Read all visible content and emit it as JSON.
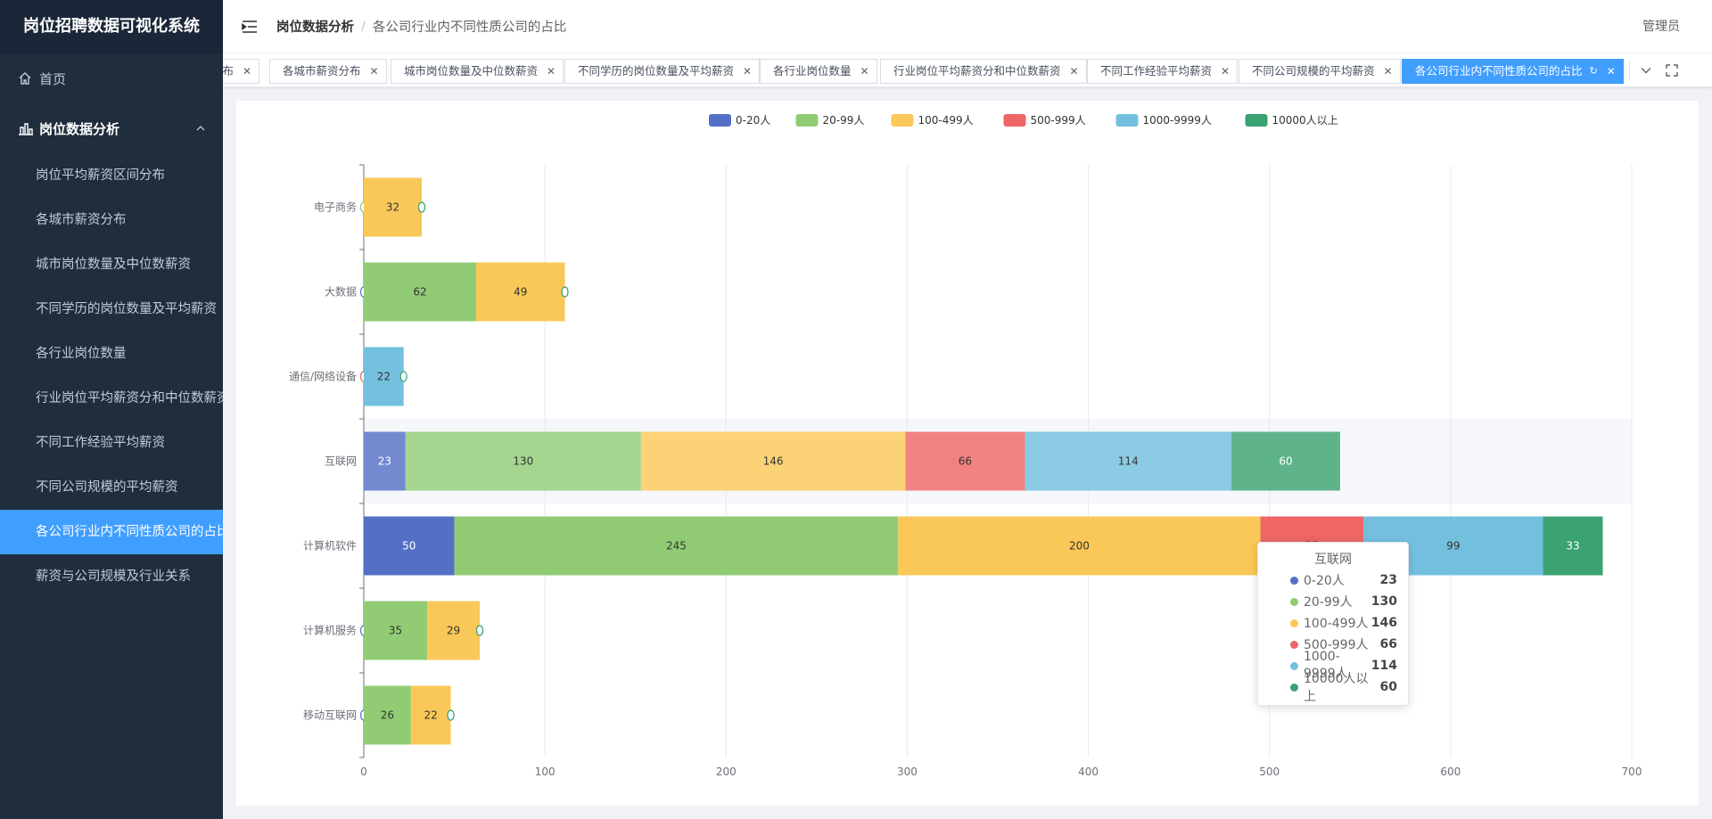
{
  "app_title": "岗位招聘数据可视化系统",
  "sidebar": {
    "home_label": "首页",
    "group_label": "岗位数据分析",
    "items": [
      {
        "label": "岗位平均薪资区间分布"
      },
      {
        "label": "各城市薪资分布"
      },
      {
        "label": "城市岗位数量及中位数薪资"
      },
      {
        "label": "不同学历的岗位数量及平均薪资"
      },
      {
        "label": "各行业岗位数量"
      },
      {
        "label": "行业岗位平均薪资分和中位数薪资"
      },
      {
        "label": "不同工作经验平均薪资"
      },
      {
        "label": "不同公司规模的平均薪资"
      },
      {
        "label": "各公司行业内不同性质公司的占比"
      },
      {
        "label": "薪资与公司规模及行业关系"
      }
    ]
  },
  "breadcrumb": {
    "level1": "岗位数据分析",
    "separator": "/",
    "level2": "各公司行业内不同性质公司的占比"
  },
  "user_label": "管理员",
  "tags": [
    {
      "label": "分布"
    },
    {
      "label": "各城市薪资分布"
    },
    {
      "label": "城市岗位数量及中位数薪资"
    },
    {
      "label": "不同学历的岗位数量及平均薪资"
    },
    {
      "label": "各行业岗位数量"
    },
    {
      "label": "行业岗位平均薪资分和中位数薪资"
    },
    {
      "label": "不同工作经验平均薪资"
    },
    {
      "label": "不同公司规模的平均薪资"
    },
    {
      "label": "各公司行业内不同性质公司的占比"
    }
  ],
  "chart_data": {
    "type": "bar",
    "orientation": "horizontal",
    "stacked": true,
    "categories": [
      "电子商务",
      "大数据",
      "通信/网络设备",
      "互联网",
      "计算机软件",
      "计算机服务",
      "移动互联网"
    ],
    "series": [
      {
        "name": "0-20人",
        "color": "#5470c6",
        "values": [
          0,
          0,
          0,
          23,
          50,
          0,
          0
        ]
      },
      {
        "name": "20-99人",
        "color": "#91cc75",
        "values": [
          0,
          62,
          0,
          130,
          245,
          35,
          26
        ]
      },
      {
        "name": "100-499人",
        "color": "#fac858",
        "values": [
          32,
          49,
          0,
          146,
          200,
          29,
          22
        ]
      },
      {
        "name": "500-999人",
        "color": "#ee6666",
        "values": [
          0,
          0,
          0,
          66,
          57,
          0,
          0
        ]
      },
      {
        "name": "1000-9999人",
        "color": "#73c0de",
        "values": [
          0,
          0,
          22,
          114,
          99,
          0,
          0
        ]
      },
      {
        "name": "10000人以上",
        "color": "#3ba272",
        "values": [
          0,
          0,
          0,
          60,
          33,
          0,
          0
        ]
      }
    ],
    "xlim": [
      0,
      700
    ],
    "xticks": [
      0,
      100,
      200,
      300,
      400,
      500,
      600,
      700
    ],
    "legend_position": "top-center",
    "grid": true,
    "highlighted_category": "互联网",
    "tooltip": {
      "title": "互联网",
      "rows": [
        {
          "name": "0-20人",
          "value": "23",
          "color": "#5470c6"
        },
        {
          "name": "20-99人",
          "value": "130",
          "color": "#91cc75"
        },
        {
          "name": "100-499人",
          "value": "146",
          "color": "#fac858"
        },
        {
          "name": "500-999人",
          "value": "66",
          "color": "#ee6666"
        },
        {
          "name": "1000-9999人",
          "value": "114",
          "color": "#73c0de"
        },
        {
          "name": "10000人以上",
          "value": "60",
          "color": "#3ba272"
        }
      ]
    }
  }
}
